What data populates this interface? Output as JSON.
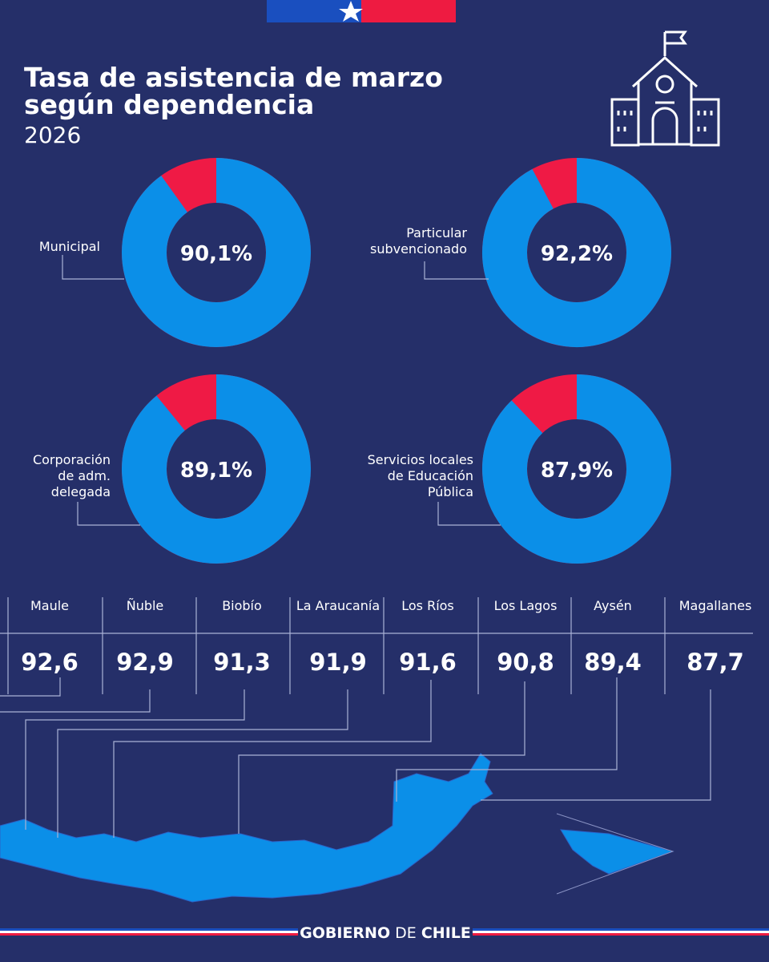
{
  "header": {
    "title_lines": [
      "Tasa de asistencia de marzo",
      "según dependencia"
    ],
    "subtitle": "2026"
  },
  "chart_data": [
    {
      "type": "donut",
      "label_lines": [
        "Municipal"
      ],
      "values": [
        90.1
      ],
      "value_labels": [
        "90,1%"
      ],
      "colors": [
        "#0b8fe8",
        "#ef1a45"
      ]
    },
    {
      "type": "donut",
      "label_lines": [
        "Particular",
        "subvencionado"
      ],
      "values": [
        92.2
      ],
      "value_labels": [
        "92,2%"
      ],
      "colors": [
        "#0b8fe8",
        "#ef1a45"
      ]
    },
    {
      "type": "donut",
      "label_lines": [
        "Corporación",
        "de adm.",
        "delegada"
      ],
      "values": [
        89.1
      ],
      "value_labels": [
        "89,1%"
      ],
      "colors": [
        "#0b8fe8",
        "#ef1a45"
      ]
    },
    {
      "type": "donut",
      "label_lines": [
        "Servicios locales",
        "de Educación",
        "Pública"
      ],
      "values": [
        87.9
      ],
      "value_labels": [
        "87,9%"
      ],
      "colors": [
        "#0b8fe8",
        "#ef1a45"
      ]
    }
  ],
  "table": {
    "header": [
      "Maule",
      "Ñuble",
      "Biobío",
      "La Araucanía",
      "Los Ríos",
      "Los Lagos",
      "Aysén",
      "Magallanes"
    ],
    "row": [
      "92,6",
      "92,9",
      "91,3",
      "91,9",
      "91,6",
      "90,8",
      "89,4",
      "87,7"
    ]
  },
  "footer": [
    "GOBIERNO",
    "DE",
    "CHILE"
  ]
}
